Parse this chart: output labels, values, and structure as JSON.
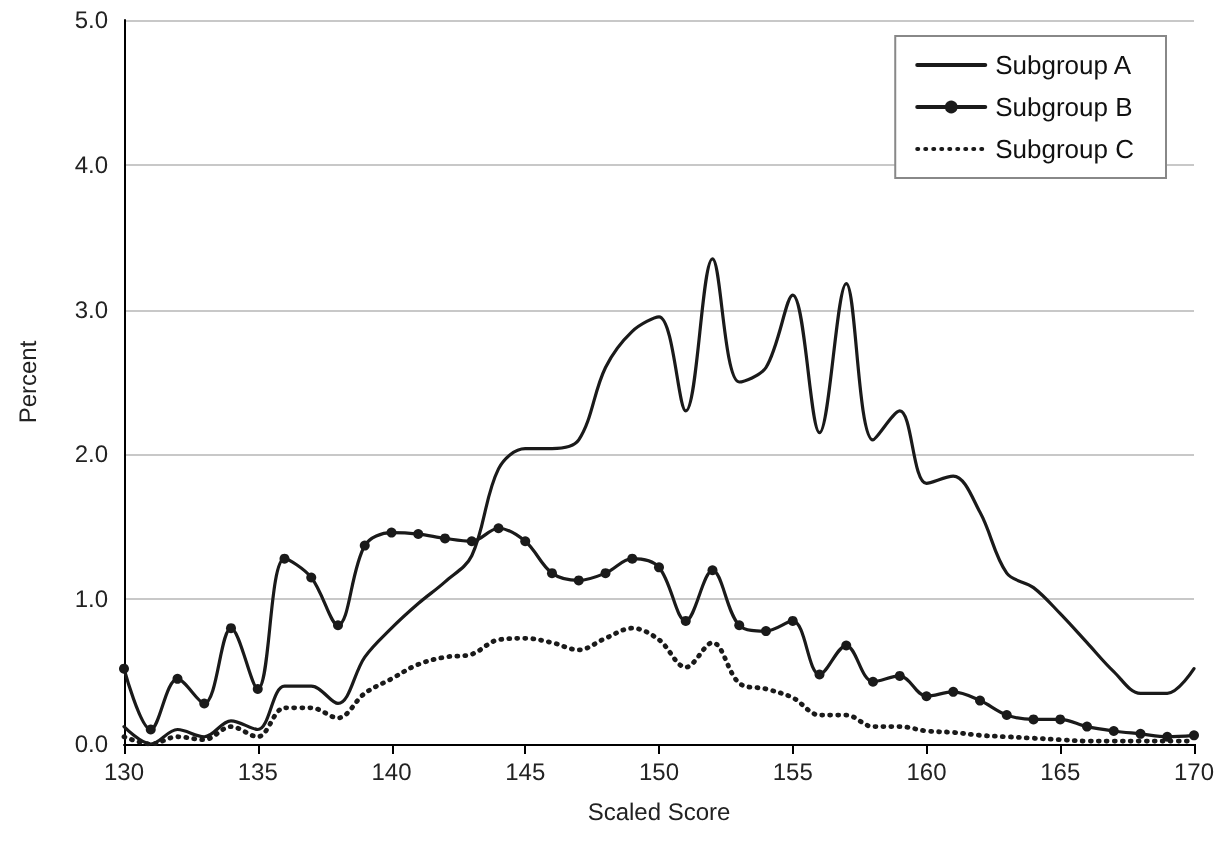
{
  "chart_data": {
    "type": "line",
    "xlabel": "Scaled Score",
    "ylabel": "Percent",
    "x": [
      130,
      131,
      132,
      133,
      134,
      135,
      136,
      137,
      138,
      139,
      140,
      141,
      142,
      143,
      144,
      145,
      146,
      147,
      148,
      149,
      150,
      151,
      152,
      153,
      154,
      155,
      156,
      157,
      158,
      159,
      160,
      161,
      162,
      163,
      164,
      165,
      166,
      167,
      168,
      169,
      170
    ],
    "xlim": [
      130,
      170
    ],
    "xticks": [
      130,
      135,
      140,
      145,
      150,
      155,
      160,
      165,
      170
    ],
    "ylim": [
      0,
      5
    ],
    "yticks": [
      {
        "value": 0,
        "label": "0.0"
      },
      {
        "value": 1,
        "label": "1.0"
      },
      {
        "value": 2,
        "label": "2.0"
      },
      {
        "value": 3,
        "label": "3.0"
      },
      {
        "value": 4,
        "label": "4.0"
      },
      {
        "value": 5,
        "label": "5.0"
      }
    ],
    "grid": "y",
    "legend": "top right",
    "series": [
      {
        "name": "Subgroup A",
        "color": "#1a1a1a",
        "marker": "none",
        "line_style": "solid",
        "values": [
          0.12,
          0.0,
          0.1,
          0.05,
          0.16,
          0.1,
          0.4,
          0.4,
          0.28,
          0.6,
          0.8,
          0.97,
          1.12,
          1.3,
          1.9,
          2.04,
          2.04,
          2.1,
          2.6,
          2.85,
          2.95,
          2.3,
          3.35,
          2.5,
          2.6,
          3.1,
          2.15,
          3.18,
          2.1,
          2.3,
          1.8,
          1.85,
          1.6,
          1.18,
          1.08,
          0.9,
          0.7,
          0.5,
          0.35,
          0.35,
          0.52
        ]
      },
      {
        "name": "Subgroup B",
        "color": "#1a1a1a",
        "marker": "circle",
        "line_style": "solid",
        "values": [
          0.52,
          0.1,
          0.45,
          0.28,
          0.8,
          0.38,
          1.28,
          1.15,
          0.82,
          1.37,
          1.46,
          1.45,
          1.42,
          1.4,
          1.49,
          1.4,
          1.18,
          1.13,
          1.18,
          1.28,
          1.22,
          0.85,
          1.2,
          0.82,
          0.78,
          0.85,
          0.48,
          0.68,
          0.43,
          0.47,
          0.33,
          0.36,
          0.3,
          0.2,
          0.17,
          0.17,
          0.12,
          0.09,
          0.07,
          0.05,
          0.06
        ]
      },
      {
        "name": "Subgroup C",
        "color": "#1a1a1a",
        "marker": "none",
        "line_style": "dotted",
        "values": [
          0.05,
          0.0,
          0.05,
          0.03,
          0.12,
          0.05,
          0.25,
          0.25,
          0.18,
          0.35,
          0.45,
          0.55,
          0.6,
          0.62,
          0.72,
          0.73,
          0.7,
          0.65,
          0.73,
          0.8,
          0.72,
          0.53,
          0.7,
          0.42,
          0.38,
          0.32,
          0.2,
          0.2,
          0.12,
          0.12,
          0.09,
          0.08,
          0.06,
          0.05,
          0.04,
          0.03,
          0.02,
          0.02,
          0.02,
          0.02,
          0.02
        ]
      }
    ]
  }
}
